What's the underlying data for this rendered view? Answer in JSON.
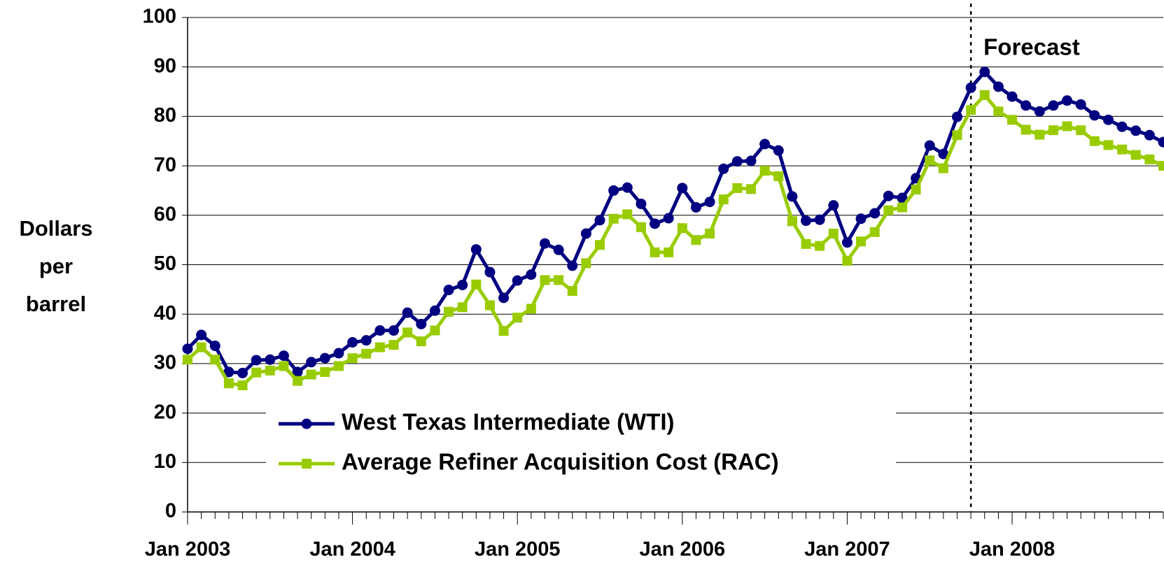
{
  "chart_data": {
    "type": "line",
    "y_label": "Dollars per barrel",
    "categories": [
      "Jan 2003",
      null,
      null,
      null,
      null,
      null,
      null,
      null,
      null,
      null,
      null,
      null,
      "Jan 2004",
      null,
      null,
      null,
      null,
      null,
      null,
      null,
      null,
      null,
      null,
      null,
      "Jan 2005",
      null,
      null,
      null,
      null,
      null,
      null,
      null,
      null,
      null,
      null,
      null,
      "Jan 2006",
      null,
      null,
      null,
      null,
      null,
      null,
      null,
      null,
      null,
      null,
      null,
      "Jan 2007",
      null,
      null,
      null,
      null,
      null,
      null,
      null,
      null,
      null,
      null,
      null,
      "Jan 2008",
      null,
      null,
      null,
      null,
      null,
      null,
      null,
      null,
      null,
      null,
      null
    ],
    "series": [
      {
        "name": "West Texas Intermediate (WTI)",
        "color": "#000080",
        "marker": "circle",
        "values": [
          33,
          35.8,
          33.6,
          28.3,
          28.1,
          30.7,
          30.8,
          31.6,
          28.3,
          30.3,
          31.1,
          32.1,
          34.3,
          34.7,
          36.7,
          36.7,
          40.3,
          38.0,
          40.7,
          44.9,
          45.9,
          53.1,
          48.5,
          43.3,
          46.8,
          48.0,
          54.3,
          53.0,
          49.8,
          56.3,
          59.0,
          65.0,
          65.6,
          62.3,
          58.3,
          59.4,
          65.5,
          61.6,
          62.7,
          69.4,
          70.9,
          71.0,
          74.4,
          73.1,
          63.8,
          58.9,
          59.1,
          62.0,
          54.5,
          59.3,
          60.4,
          63.9,
          63.5,
          67.5,
          74.1,
          72.4,
          79.9,
          85.8,
          89.0,
          86.0,
          84.0,
          82.2,
          81.0,
          82.2,
          83.2,
          82.4,
          80.2,
          79.3,
          77.9,
          77.1,
          76.2,
          74.8
        ]
      },
      {
        "name": "Average Refiner Acquisition Cost (RAC)",
        "color": "#99cc00",
        "marker": "square",
        "values": [
          30.8,
          33.3,
          30.8,
          26.0,
          25.6,
          28.2,
          28.6,
          29.5,
          26.5,
          27.8,
          28.3,
          29.5,
          31.1,
          32.0,
          33.3,
          33.8,
          36.3,
          34.5,
          36.7,
          40.5,
          41.4,
          46.0,
          41.8,
          36.6,
          39.3,
          41.1,
          46.9,
          46.9,
          44.7,
          50.3,
          54.0,
          59.3,
          60.2,
          57.6,
          52.5,
          52.5,
          57.4,
          55.0,
          56.3,
          63.2,
          65.5,
          65.3,
          69.0,
          67.9,
          58.8,
          54.2,
          53.8,
          56.3,
          50.8,
          54.7,
          56.6,
          61.0,
          61.6,
          65.2,
          71.1,
          69.5,
          76.2,
          81.3,
          84.3,
          81.0,
          79.3,
          77.3,
          76.3,
          77.2,
          78.0,
          77.2,
          75.0,
          74.2,
          73.3,
          72.2,
          71.3,
          70.0
        ]
      }
    ],
    "annotations": [
      {
        "text": "Forecast",
        "x": 57
      }
    ],
    "ylim": [
      0,
      100
    ],
    "yticks": [
      0,
      10,
      20,
      30,
      40,
      50,
      60,
      70,
      80,
      90,
      100
    ],
    "grid": true,
    "legend": "lower center"
  }
}
